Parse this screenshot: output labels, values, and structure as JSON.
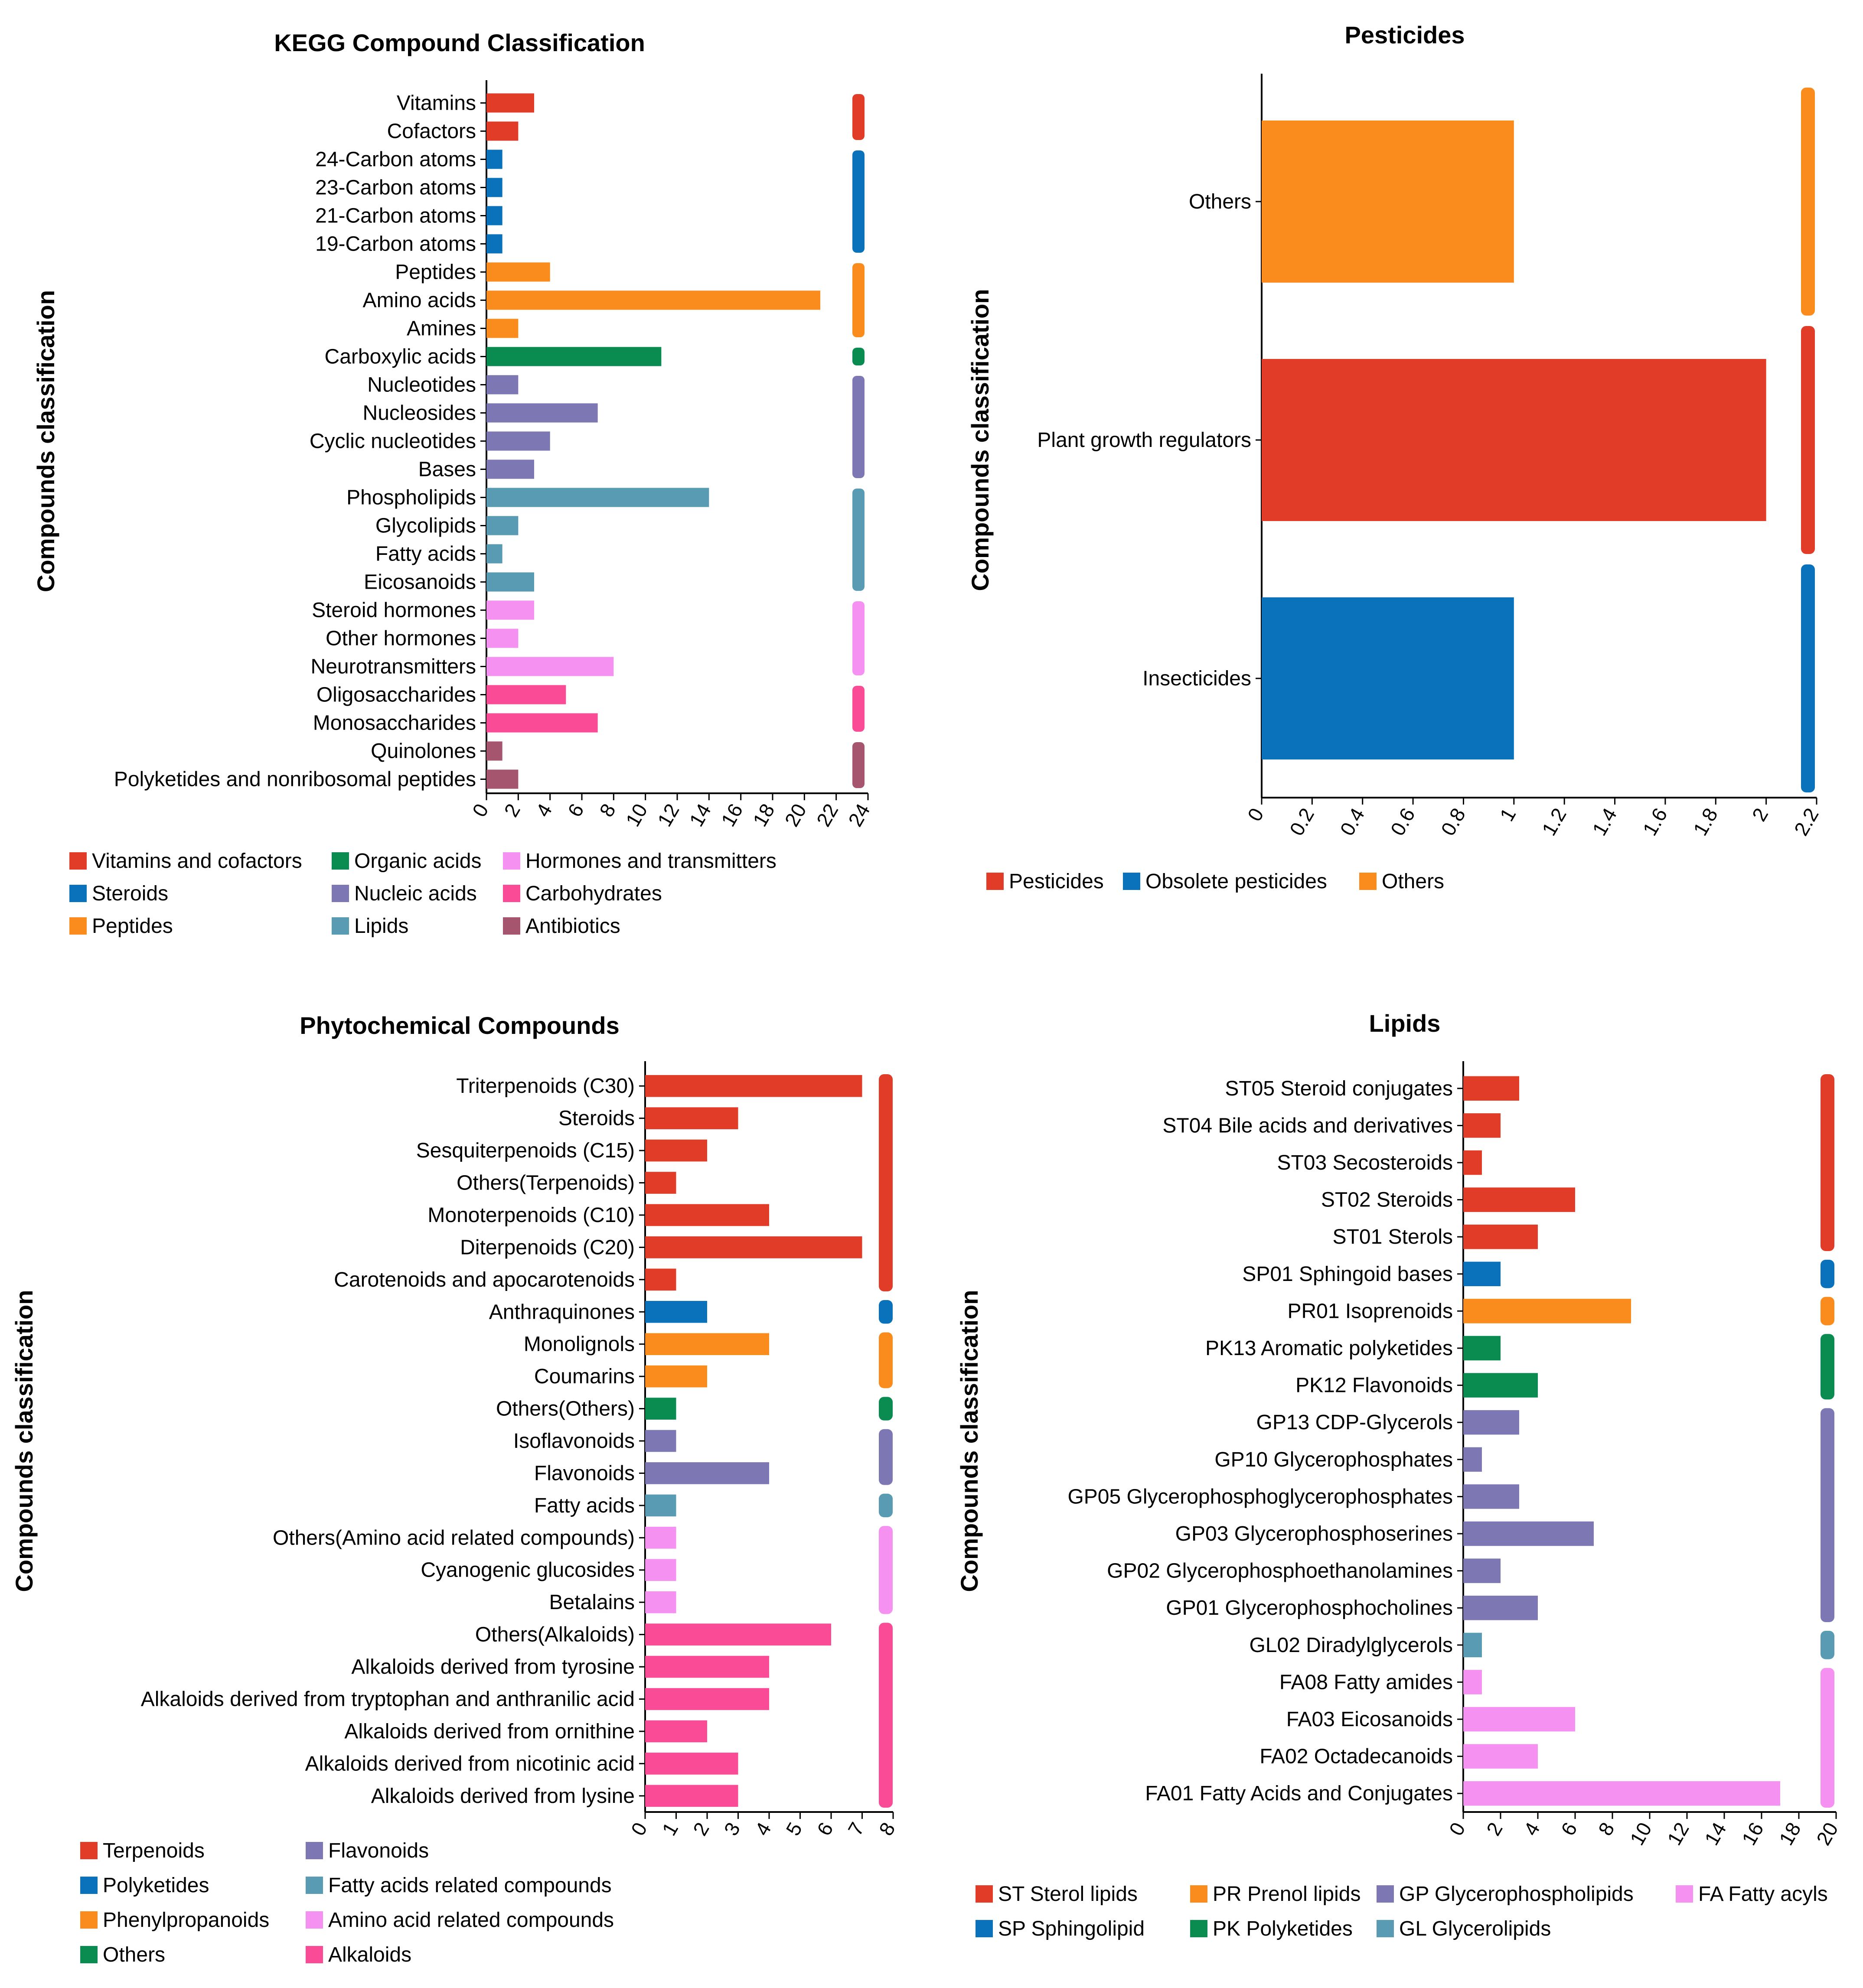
{
  "colors": {
    "red": "#E03C28",
    "blue": "#0A72BA",
    "orange": "#FA8C1E",
    "green": "#0A8C50",
    "purple": "#7D78B4",
    "teal": "#5A9BB4",
    "pink": "#F591F0",
    "magenta": "#FA4B96",
    "mauve": "#A5556E"
  },
  "chart_data": [
    {
      "type": "bar",
      "orientation": "horizontal",
      "title": "KEGG Compound Classification",
      "ylabel": "Compounds classification",
      "xlabel": "",
      "xlim": [
        0,
        24
      ],
      "ticks": [
        "0",
        "2",
        "4",
        "6",
        "8",
        "10",
        "12",
        "14",
        "16",
        "18",
        "20",
        "22",
        "24"
      ],
      "categories": [
        "Vitamins",
        "Cofactors",
        "24-Carbon atoms",
        "23-Carbon atoms",
        "21-Carbon atoms",
        "19-Carbon atoms",
        "Peptides",
        "Amino acids",
        "Amines",
        "Carboxylic acids",
        "Nucleotides",
        "Nucleosides",
        "Cyclic nucleotides",
        "Bases",
        "Phospholipids",
        "Glycolipids",
        "Fatty acids",
        "Eicosanoids",
        "Steroid hormones",
        "Other hormones",
        "Neurotransmitters",
        "Oligosaccharides",
        "Monosaccharides",
        "Quinolones",
        "Polyketides and nonribosomal peptides"
      ],
      "values": [
        3,
        2,
        1,
        1,
        1,
        1,
        4,
        21,
        2,
        11,
        2,
        7,
        4,
        3,
        14,
        2,
        1,
        3,
        3,
        2,
        8,
        5,
        7,
        1,
        2
      ],
      "groups": [
        0,
        0,
        1,
        1,
        1,
        1,
        2,
        2,
        2,
        3,
        4,
        4,
        4,
        4,
        5,
        5,
        5,
        5,
        6,
        6,
        6,
        7,
        7,
        8,
        8
      ],
      "legend": [
        {
          "label": "Vitamins and cofactors",
          "color": "red"
        },
        {
          "label": "Steroids",
          "color": "blue"
        },
        {
          "label": "Peptides",
          "color": "orange"
        },
        {
          "label": "Organic acids",
          "color": "green"
        },
        {
          "label": "Nucleic acids",
          "color": "purple"
        },
        {
          "label": "Lipids",
          "color": "teal"
        },
        {
          "label": "Hormones and transmitters",
          "color": "pink"
        },
        {
          "label": "Carbohydrates",
          "color": "magenta"
        },
        {
          "label": "Antibiotics",
          "color": "mauve"
        }
      ]
    },
    {
      "type": "bar",
      "orientation": "horizontal",
      "title": "Pesticides",
      "ylabel": "Compounds classification",
      "xlabel": "",
      "xlim": [
        0,
        2.2
      ],
      "ticks": [
        "0",
        "0.2",
        "0.4",
        "0.6",
        "0.8",
        "1",
        "1.2",
        "1.4",
        "1.6",
        "1.8",
        "2",
        "2.2"
      ],
      "categories": [
        "Others",
        "Plant growth regulators",
        "Insecticides"
      ],
      "values": [
        1,
        2,
        1
      ],
      "groups": [
        2,
        0,
        1
      ],
      "legend": [
        {
          "label": "Pesticides",
          "color": "red"
        },
        {
          "label": "Obsolete pesticides",
          "color": "blue"
        },
        {
          "label": "Others",
          "color": "orange"
        }
      ]
    },
    {
      "type": "bar",
      "orientation": "horizontal",
      "title": "Phytochemical Compounds",
      "ylabel": "Compounds classification",
      "xlabel": "",
      "xlim": [
        0,
        8
      ],
      "ticks": [
        "0",
        "1",
        "2",
        "3",
        "4",
        "5",
        "6",
        "7",
        "8"
      ],
      "categories": [
        "Triterpenoids (C30)",
        "Steroids",
        "Sesquiterpenoids (C15)",
        "Others(Terpenoids)",
        "Monoterpenoids (C10)",
        "Diterpenoids (C20)",
        "Carotenoids and apocarotenoids",
        "Anthraquinones",
        "Monolignols",
        "Coumarins",
        "Others(Others)",
        "Isoflavonoids",
        "Flavonoids",
        "Fatty acids",
        "Others(Amino acid related compounds)",
        "Cyanogenic glucosides",
        "Betalains",
        "Others(Alkaloids)",
        "Alkaloids derived from tyrosine",
        "Alkaloids derived from tryptophan and anthranilic acid",
        "Alkaloids derived from ornithine",
        "Alkaloids derived from nicotinic acid",
        "Alkaloids derived from lysine"
      ],
      "values": [
        7,
        3,
        2,
        1,
        4,
        7,
        1,
        2,
        4,
        2,
        1,
        1,
        4,
        1,
        1,
        1,
        1,
        6,
        4,
        4,
        2,
        3,
        3
      ],
      "groups": [
        0,
        0,
        0,
        0,
        0,
        0,
        0,
        1,
        2,
        2,
        3,
        4,
        4,
        5,
        6,
        6,
        6,
        7,
        7,
        7,
        7,
        7,
        7
      ],
      "legend": [
        {
          "label": "Terpenoids",
          "color": "red"
        },
        {
          "label": "Polyketides",
          "color": "blue"
        },
        {
          "label": "Phenylpropanoids",
          "color": "orange"
        },
        {
          "label": "Others",
          "color": "green"
        },
        {
          "label": "Flavonoids",
          "color": "purple"
        },
        {
          "label": "Fatty acids related compounds",
          "color": "teal"
        },
        {
          "label": "Amino acid related compounds",
          "color": "pink"
        },
        {
          "label": "Alkaloids",
          "color": "magenta"
        }
      ]
    },
    {
      "type": "bar",
      "orientation": "horizontal",
      "title": "Lipids",
      "ylabel": "Compounds classification",
      "xlabel": "",
      "xlim": [
        0,
        20
      ],
      "ticks": [
        "0",
        "2",
        "4",
        "6",
        "8",
        "10",
        "12",
        "14",
        "16",
        "18",
        "20"
      ],
      "categories": [
        "ST05 Steroid conjugates",
        "ST04 Bile acids and derivatives",
        "ST03 Secosteroids",
        "ST02 Steroids",
        "ST01 Sterols",
        "SP01 Sphingoid bases",
        "PR01 Isoprenoids",
        "PK13 Aromatic polyketides",
        "PK12 Flavonoids",
        "GP13 CDP-Glycerols",
        "GP10 Glycerophosphates",
        "GP05 Glycerophosphoglycerophosphates",
        "GP03 Glycerophosphoserines",
        "GP02 Glycerophosphoethanolamines",
        "GP01 Glycerophosphocholines",
        "GL02 Diradylglycerols",
        "FA08 Fatty amides",
        "FA03 Eicosanoids",
        "FA02 Octadecanoids",
        "FA01 Fatty Acids and Conjugates"
      ],
      "values": [
        3,
        2,
        1,
        6,
        4,
        2,
        9,
        2,
        4,
        3,
        1,
        3,
        7,
        2,
        4,
        1,
        1,
        6,
        4,
        17
      ],
      "groups": [
        0,
        0,
        0,
        0,
        0,
        1,
        2,
        3,
        3,
        4,
        4,
        4,
        4,
        4,
        4,
        5,
        6,
        6,
        6,
        6
      ],
      "legend": [
        {
          "label": "ST Sterol lipids",
          "color": "red"
        },
        {
          "label": "SP Sphingolipid",
          "color": "blue"
        },
        {
          "label": "PR Prenol lipids",
          "color": "orange"
        },
        {
          "label": "PK Polyketides",
          "color": "green"
        },
        {
          "label": "GP Glycerophospholipids",
          "color": "purple"
        },
        {
          "label": "GL Glycerolipids",
          "color": "teal"
        },
        {
          "label": "FA Fatty acyls",
          "color": "pink"
        }
      ]
    }
  ]
}
